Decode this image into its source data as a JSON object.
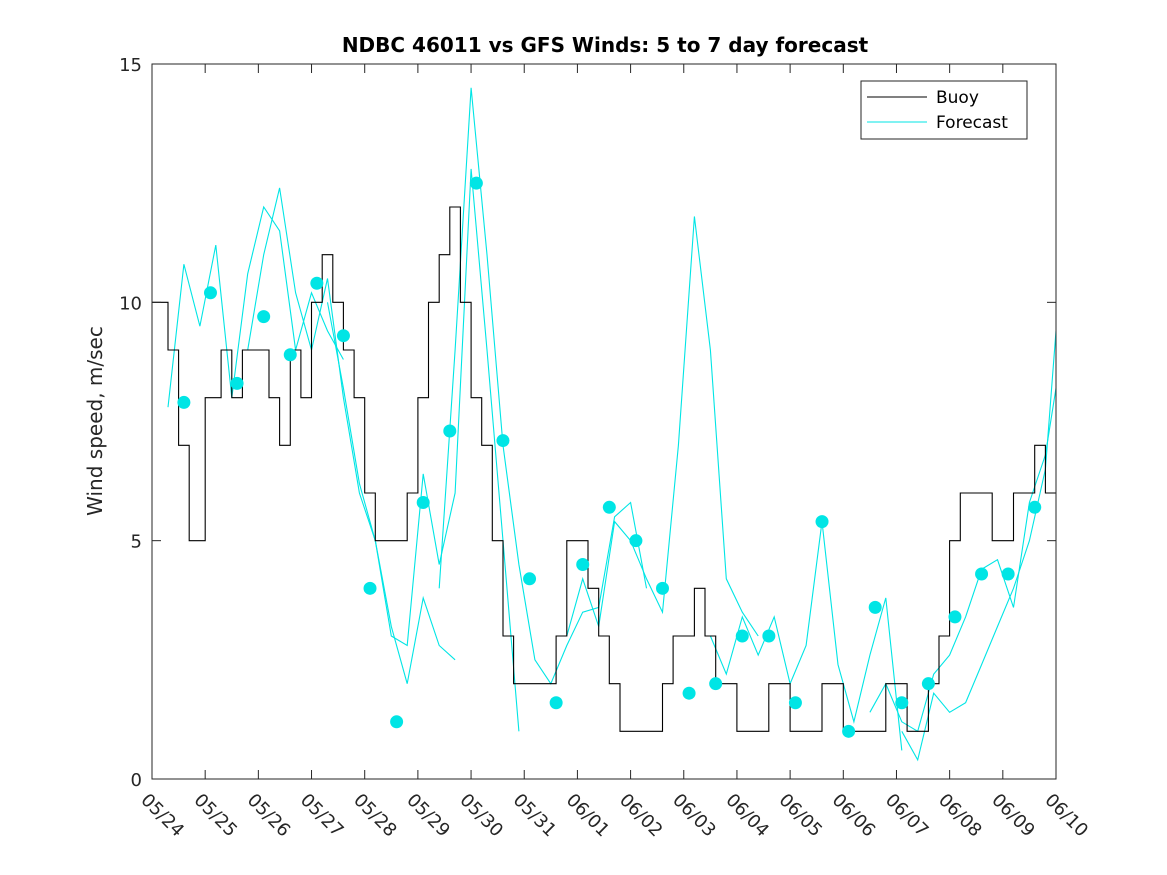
{
  "chart_data": {
    "type": "line",
    "title": "NDBC 46011 vs GFS Winds: 5 to 7 day forecast",
    "ylabel": "Wind speed, m/sec",
    "xlabel": "",
    "ylim": [
      0,
      15
    ],
    "xlim": [
      "05/24",
      "06/10"
    ],
    "yticks": [
      "0",
      "5",
      "10",
      "15"
    ],
    "xtick_labels": [
      "05/24",
      "05/25",
      "05/26",
      "05/27",
      "05/28",
      "05/29",
      "05/30",
      "05/31",
      "06/01",
      "06/02",
      "06/03",
      "06/04",
      "06/05",
      "06/06",
      "06/07",
      "06/08",
      "06/09",
      "06/10"
    ],
    "legend_position": "top-right",
    "legend": [
      {
        "label": "Buoy",
        "color": "#000000"
      },
      {
        "label": "Forecast",
        "color": "#00e5e5"
      }
    ],
    "colors": {
      "buoy": "#000000",
      "forecast": "#00e5e5"
    },
    "buoy": {
      "name": "Buoy",
      "t": [
        0,
        0.3,
        0.5,
        0.7,
        1.0,
        1.3,
        1.5,
        1.7,
        2.0,
        2.2,
        2.4,
        2.6,
        2.8,
        3.0,
        3.2,
        3.4,
        3.6,
        3.8,
        4.0,
        4.2,
        4.4,
        4.6,
        4.8,
        5.0,
        5.2,
        5.4,
        5.6,
        5.8,
        6.0,
        6.2,
        6.4,
        6.6,
        6.8,
        7.0,
        7.2,
        7.4,
        7.6,
        7.8,
        8.0,
        8.2,
        8.4,
        8.6,
        8.8,
        9.0,
        9.2,
        9.4,
        9.6,
        9.8,
        10.0,
        10.2,
        10.4,
        10.6,
        10.8,
        11.0,
        11.2,
        11.4,
        11.6,
        11.8,
        12.0,
        12.2,
        12.4,
        12.6,
        12.8,
        13.0,
        13.2,
        13.4,
        13.6,
        13.8,
        14.0,
        14.2,
        14.4,
        14.6,
        14.8,
        15.0,
        15.2,
        15.4,
        15.6,
        15.8,
        16.0,
        16.2,
        16.4,
        16.6,
        16.8,
        17.0
      ],
      "values": [
        10,
        9,
        7,
        5,
        8,
        9,
        8,
        9,
        9,
        8,
        7,
        9,
        8,
        10,
        11,
        10,
        9,
        8,
        6,
        5,
        5,
        5,
        6,
        8,
        10,
        11,
        12,
        10,
        8,
        7,
        5,
        3,
        2,
        2,
        2,
        2,
        3,
        5,
        5,
        4,
        3,
        2,
        1,
        1,
        1,
        1,
        2,
        3,
        3,
        4,
        3,
        2,
        2,
        1,
        1,
        1,
        2,
        2,
        1,
        1,
        1,
        2,
        2,
        1,
        1,
        1,
        1,
        2,
        2,
        1,
        1,
        2,
        3,
        5,
        6,
        6,
        6,
        5,
        5,
        6,
        6,
        7,
        6,
        6
      ]
    },
    "forecast_markers": {
      "t": [
        0.6,
        1.1,
        1.6,
        2.1,
        2.6,
        3.1,
        3.6,
        4.1,
        4.6,
        5.1,
        5.6,
        6.1,
        6.6,
        7.1,
        7.6,
        8.1,
        8.6,
        9.1,
        9.6,
        10.1,
        10.6,
        11.1,
        11.6,
        12.1,
        12.6,
        13.1,
        13.6,
        14.1,
        14.6,
        15.1,
        15.6,
        16.1,
        16.6
      ],
      "values": [
        7.9,
        10.2,
        8.3,
        9.7,
        8.9,
        10.4,
        9.3,
        4.0,
        1.2,
        5.8,
        7.3,
        12.5,
        7.1,
        4.2,
        1.6,
        4.5,
        5.7,
        5.0,
        4.0,
        1.8,
        2.0,
        3.0,
        3.0,
        1.6,
        5.4,
        1.0,
        3.6,
        1.6,
        2.0,
        3.4,
        4.3,
        4.3,
        5.7
      ]
    },
    "forecast_series": [
      {
        "name": "Forecast",
        "t": [
          0.3,
          0.6,
          0.9,
          1.2,
          1.5,
          1.8,
          2.1,
          2.4,
          2.7,
          3.0,
          3.3,
          3.6
        ],
        "values": [
          7.8,
          10.8,
          9.5,
          11.2,
          8.0,
          10.6,
          12.0,
          11.5,
          9.0,
          10.2,
          9.4,
          8.8
        ]
      },
      {
        "name": "Forecast",
        "t": [
          1.8,
          2.1,
          2.4,
          2.7,
          3.0,
          3.3,
          3.6,
          3.9,
          4.2,
          4.5,
          4.8,
          5.1,
          5.4,
          5.7
        ],
        "values": [
          9.0,
          11.0,
          12.4,
          10.2,
          9.0,
          10.5,
          8.0,
          6.0,
          5.0,
          3.2,
          2.0,
          3.8,
          2.8,
          2.5
        ]
      },
      {
        "name": "Forecast",
        "t": [
          3.3,
          3.6,
          3.9,
          4.2,
          4.5,
          4.8,
          5.1,
          5.4,
          5.7,
          6.0,
          6.3,
          6.6,
          6.9
        ],
        "values": [
          10.0,
          8.2,
          6.2,
          5.0,
          3.0,
          2.8,
          6.4,
          4.5,
          6.0,
          12.8,
          9.0,
          5.0,
          1.0
        ]
      },
      {
        "name": "Forecast",
        "t": [
          5.4,
          5.7,
          6.0,
          6.3,
          6.6,
          6.9,
          7.2,
          7.5,
          7.8,
          8.1,
          8.4,
          8.7,
          9.0,
          9.3
        ],
        "values": [
          4.0,
          9.0,
          14.5,
          11.0,
          7.0,
          4.5,
          2.5,
          2.0,
          2.8,
          3.5,
          3.6,
          5.5,
          5.8,
          4.0
        ]
      },
      {
        "name": "Forecast",
        "t": [
          7.8,
          8.1,
          8.4,
          8.7,
          9.0,
          9.3,
          9.6,
          9.9,
          10.2,
          10.5,
          10.8,
          11.1,
          11.4
        ],
        "values": [
          3.0,
          4.2,
          3.2,
          5.4,
          5.0,
          4.2,
          3.5,
          7.0,
          11.8,
          9.0,
          4.2,
          3.5,
          3.0
        ]
      },
      {
        "name": "Forecast",
        "t": [
          10.5,
          10.8,
          11.1,
          11.4,
          11.7,
          12.0,
          12.3,
          12.6,
          12.9,
          13.2,
          13.5,
          13.8,
          14.1
        ],
        "values": [
          3.0,
          2.2,
          3.4,
          2.6,
          3.4,
          2.0,
          2.8,
          5.4,
          2.4,
          1.2,
          2.6,
          3.8,
          0.6
        ]
      },
      {
        "name": "Forecast",
        "t": [
          13.5,
          13.8,
          14.1,
          14.4,
          14.7,
          15.0,
          15.3,
          15.6,
          15.9,
          16.2,
          16.5,
          16.8,
          17.0
        ],
        "values": [
          1.4,
          2.0,
          1.2,
          1.0,
          2.2,
          2.6,
          3.4,
          4.4,
          4.6,
          3.6,
          5.8,
          6.8,
          8.2
        ]
      },
      {
        "name": "Forecast",
        "t": [
          14.1,
          14.4,
          14.7,
          15.0,
          15.3,
          15.6,
          15.9,
          16.2,
          16.5,
          16.8,
          17.0
        ],
        "values": [
          1.0,
          0.4,
          1.8,
          1.4,
          1.6,
          2.4,
          3.2,
          4.0,
          5.0,
          6.5,
          9.4
        ]
      }
    ]
  }
}
